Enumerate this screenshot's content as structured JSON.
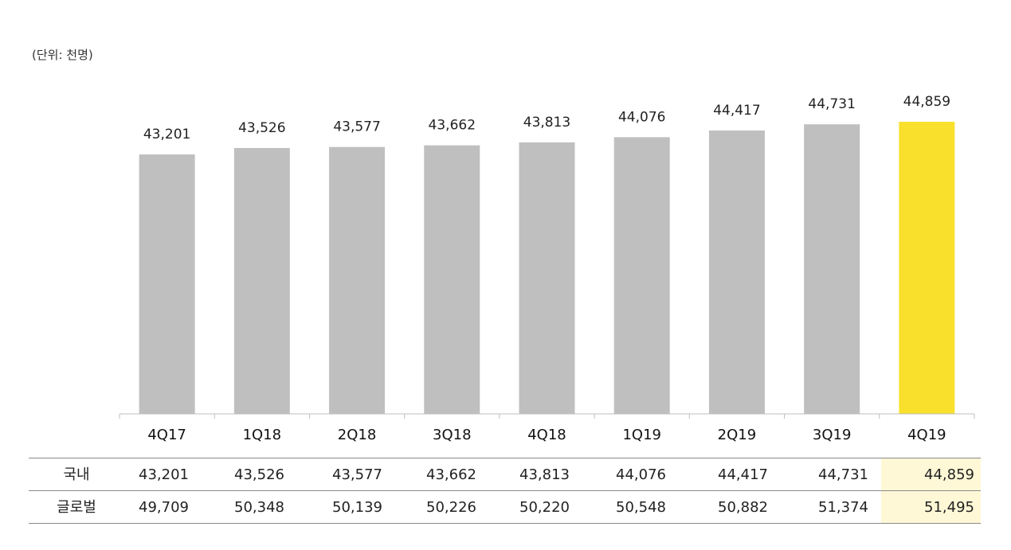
{
  "unit_label": "(단위: 천명)",
  "colors": {
    "bar_default": "#bfbfbf",
    "bar_highlight": "#f9e02d",
    "cell_highlight": "#fff8d6",
    "axis": "#bfbfbf"
  },
  "chart_data": {
    "type": "bar",
    "categories": [
      "4Q17",
      "1Q18",
      "2Q18",
      "3Q18",
      "4Q18",
      "1Q19",
      "2Q19",
      "3Q19",
      "4Q19"
    ],
    "values": [
      43201,
      43526,
      43577,
      43662,
      43813,
      44076,
      44417,
      44731,
      44859
    ],
    "value_labels": [
      "43,201",
      "43,526",
      "43,577",
      "43,662",
      "43,813",
      "44,076",
      "44,417",
      "44,731",
      "44,859"
    ],
    "highlight_index": 8,
    "title": "",
    "xlabel": "",
    "ylabel": "",
    "grid": false,
    "table": {
      "rows": [
        {
          "label": "국내",
          "values": [
            "43,201",
            "43,526",
            "43,577",
            "43,662",
            "43,813",
            "44,076",
            "44,417",
            "44,731",
            "44,859"
          ]
        },
        {
          "label": "글로벌",
          "values": [
            "49,709",
            "50,348",
            "50,139",
            "50,226",
            "50,220",
            "50,548",
            "50,882",
            "51,374",
            "51,495"
          ]
        }
      ]
    }
  }
}
